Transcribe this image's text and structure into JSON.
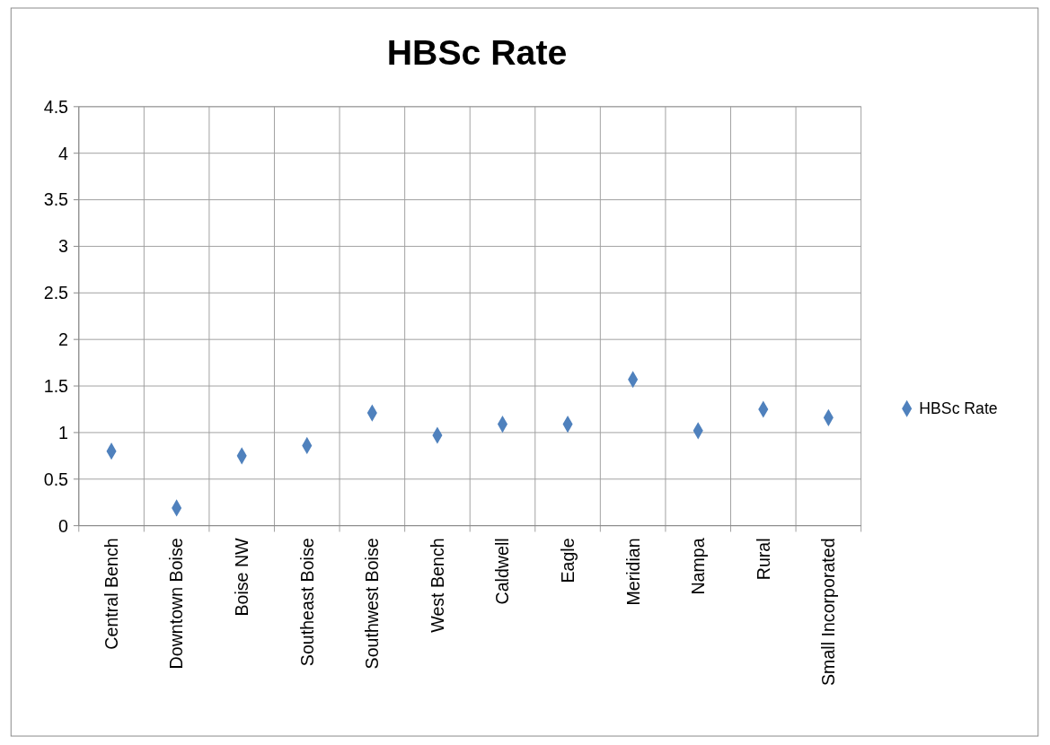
{
  "chart_data": {
    "type": "scatter",
    "title": "HBSc Rate",
    "categories": [
      "Central Bench",
      "Downtown Boise",
      "Boise NW",
      "Southeast Boise",
      "Southwest Boise",
      "West Bench",
      "Caldwell",
      "Eagle",
      "Meridian",
      "Nampa",
      "Rural",
      "Small Incorporated"
    ],
    "series": [
      {
        "name": "HBSc Rate",
        "color": "#4f81bd",
        "values": [
          0.8,
          0.19,
          0.75,
          0.86,
          1.21,
          0.97,
          1.09,
          1.09,
          1.57,
          1.02,
          1.25,
          1.16
        ]
      }
    ],
    "ylim": [
      0,
      4.5
    ],
    "yticks": [
      0,
      0.5,
      1,
      1.5,
      2,
      2.5,
      3,
      3.5,
      4,
      4.5
    ],
    "grid": true,
    "legend": "right",
    "marker": "diamond"
  }
}
